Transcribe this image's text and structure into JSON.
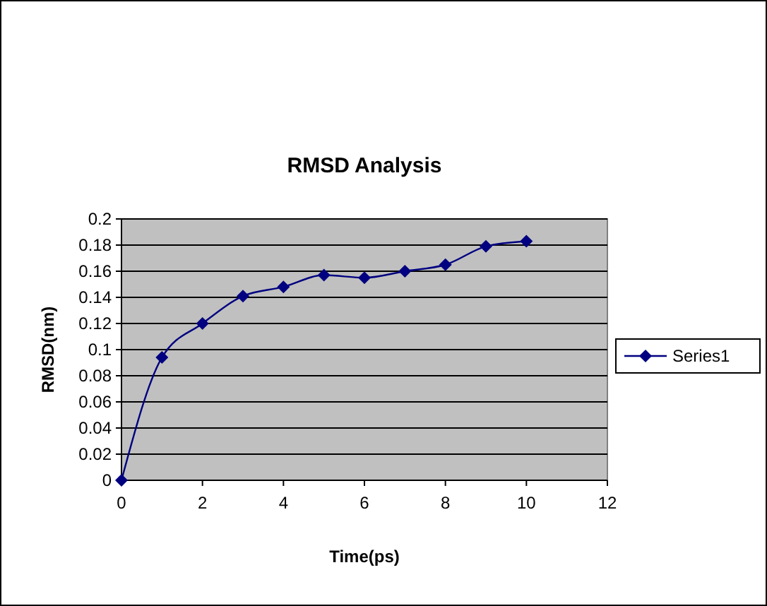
{
  "chart_data": {
    "type": "line",
    "title": "RMSD Analysis",
    "xlabel": "Time(ps)",
    "ylabel": "RMSD(nm)",
    "x": [
      0,
      1,
      2,
      3,
      4,
      5,
      6,
      7,
      8,
      9,
      10
    ],
    "series": [
      {
        "name": "Series1",
        "color": "#000080",
        "values": [
          0,
          0.094,
          0.12,
          0.141,
          0.148,
          0.157,
          0.155,
          0.16,
          0.165,
          0.179,
          0.183
        ]
      }
    ],
    "xlim": [
      0,
      12
    ],
    "xticks": [
      0,
      2,
      4,
      6,
      8,
      10,
      12
    ],
    "ylim": [
      0,
      0.2
    ],
    "yticks": [
      0,
      0.02,
      0.04,
      0.06,
      0.08,
      0.1,
      0.12,
      0.14,
      0.16,
      0.18,
      0.2
    ],
    "grid": "y",
    "legend": "right",
    "marker": "diamond",
    "line_style": "solid"
  }
}
